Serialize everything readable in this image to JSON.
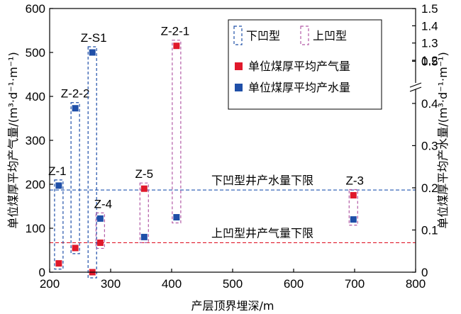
{
  "chart_data": {
    "type": "scatter",
    "xlabel": "产层顶界埋深/m",
    "ylabel_left": "单位煤厚平均产气量/(m³·d⁻¹·m⁻¹)",
    "ylabel_right": "单位煤厚平均产水量/(m³·d⁻¹·m⁻¹)",
    "x_range": [
      200,
      800
    ],
    "x_ticks": [
      "200",
      "300",
      "400",
      "500",
      "600",
      "700",
      "800"
    ],
    "y_left_range": [
      0,
      600
    ],
    "y_left_ticks": [
      "0",
      "100",
      "200",
      "300",
      "400",
      "500",
      "600"
    ],
    "y_right_lower_range": [
      0,
      0.6
    ],
    "y_right_lower_ticks": [
      "0",
      "0.1",
      "0.2",
      "0.3",
      "0.4",
      "0.5"
    ],
    "y_right_upper_range": [
      1.15,
      1.5
    ],
    "y_right_upper_ticks": [
      "1.2",
      "1.3",
      "1.4",
      "1.5"
    ],
    "colors": {
      "gas": "#e0192b",
      "water": "#1f4fa8",
      "lower_type": "#1f4fa8",
      "upper_type": "#b35aa6",
      "water_limit": "#2255b0",
      "gas_limit": "#e0192b"
    },
    "legend": {
      "lower_type": "下凹型",
      "upper_type": "上凹型",
      "gas": "单位煤厚平均产气量",
      "water": "单位煤厚平均产水量",
      "position": "top-right"
    },
    "reference_lines": [
      {
        "label": "下凹型井产水量下限",
        "axis": "left",
        "y": 187
      },
      {
        "label": "上凹型井产气量下限",
        "axis": "left",
        "y": 67
      }
    ],
    "wells": [
      {
        "name": "Z-1",
        "type": "lower",
        "x": 215,
        "gas": 20,
        "water_left": 197
      },
      {
        "name": "Z-2-2",
        "type": "lower",
        "x": 242,
        "gas": 55,
        "water_left": 373
      },
      {
        "name": "Z-S1",
        "type": "lower",
        "x": 270,
        "gas": 0,
        "water_left": 500
      },
      {
        "name": "Z-4",
        "type": "upper",
        "x": 283,
        "gas": 67,
        "water_left": 122
      },
      {
        "name": "Z-5",
        "type": "upper",
        "x": 355,
        "gas": 190,
        "water_left": 80
      },
      {
        "name": "Z-2-1",
        "type": "upper",
        "x": 408,
        "gas": 515,
        "water_left": 125
      },
      {
        "name": "Z-3",
        "type": "upper",
        "x": 698,
        "gas": 175,
        "water_left": 120
      }
    ]
  }
}
